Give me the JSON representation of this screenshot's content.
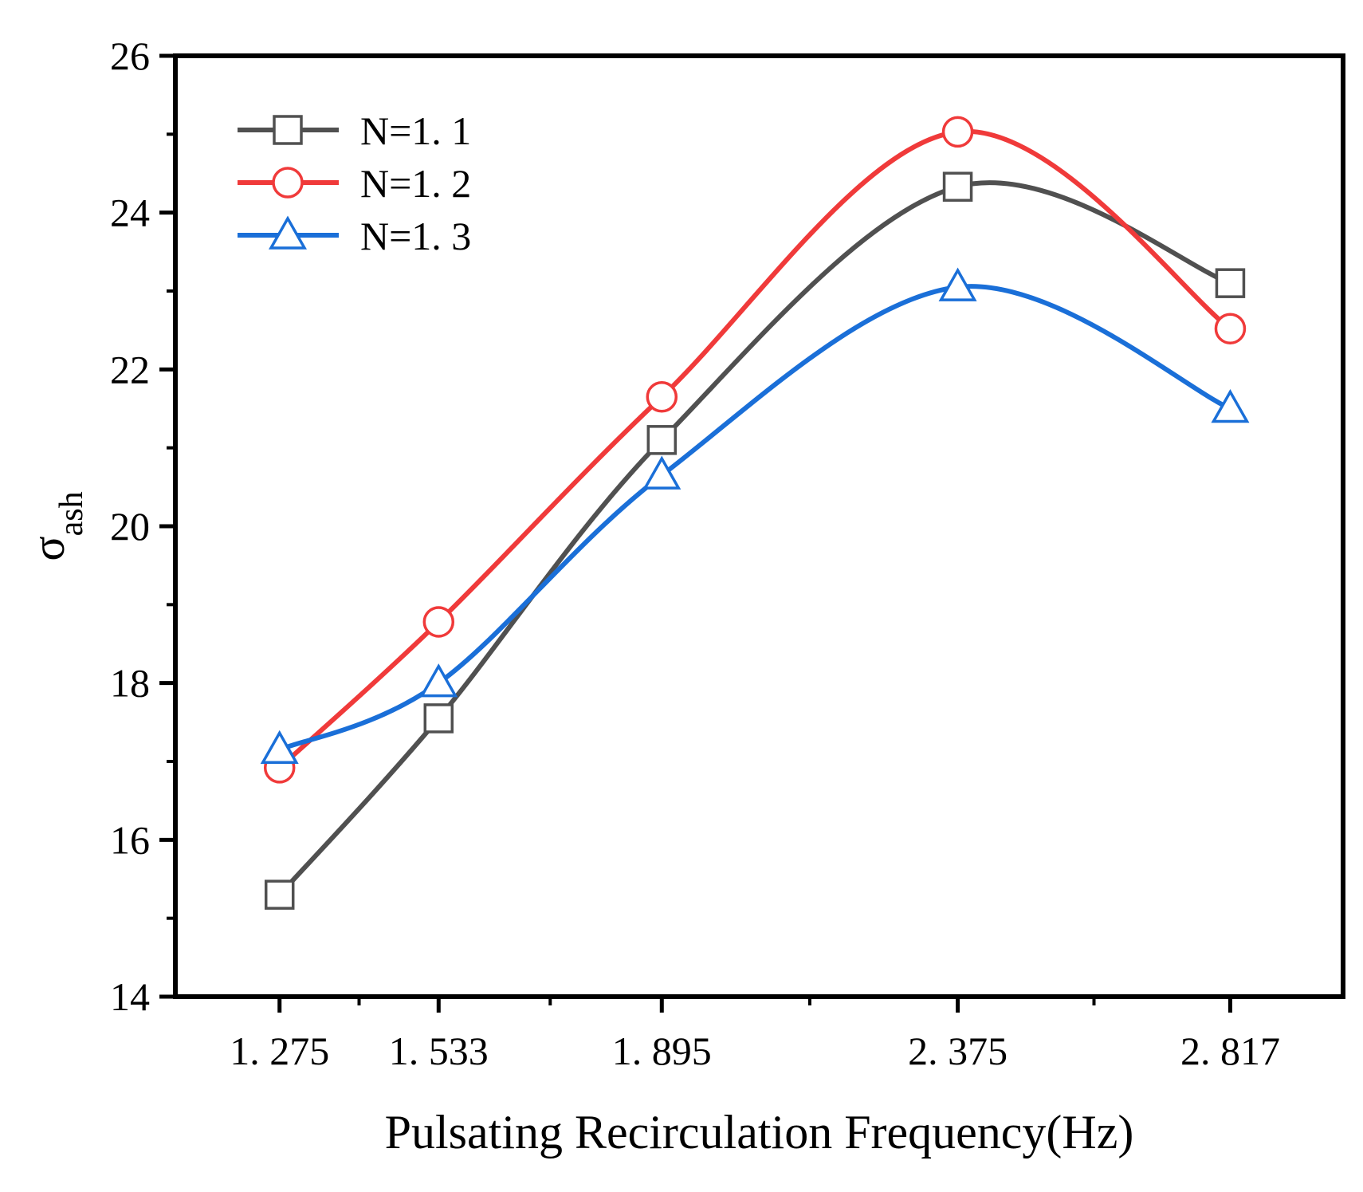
{
  "chart_data": {
    "type": "line",
    "title": "",
    "xlabel": "Pulsating Recirculation Frequency(Hz)",
    "ylabel": "σ",
    "ylabel_subscript": "ash",
    "x": [
      1.275,
      1.533,
      1.895,
      2.375,
      2.817
    ],
    "x_tick_labels": [
      "1. 275",
      "1. 533",
      "1. 895",
      "2. 375",
      "2. 817"
    ],
    "xlim": [
      1.106,
      3.0
    ],
    "ylim": [
      14,
      26
    ],
    "y_ticks": [
      14,
      16,
      18,
      20,
      22,
      24,
      26
    ],
    "y_tick_labels": [
      "14",
      "16",
      "18",
      "20",
      "22",
      "24",
      "26"
    ],
    "legend_position": "top-left",
    "grid": false,
    "series": [
      {
        "name": "N=1. 1",
        "color": "#505050",
        "marker": "square",
        "values": [
          15.3,
          17.55,
          21.1,
          24.33,
          23.1
        ]
      },
      {
        "name": "N=1. 2",
        "color": "#f03a3a",
        "marker": "circle",
        "values": [
          16.92,
          18.78,
          21.65,
          25.03,
          22.52
        ]
      },
      {
        "name": "N=1. 3",
        "color": "#1a6fd8",
        "marker": "triangle",
        "values": [
          17.15,
          18.0,
          20.65,
          23.05,
          21.5
        ]
      }
    ]
  }
}
